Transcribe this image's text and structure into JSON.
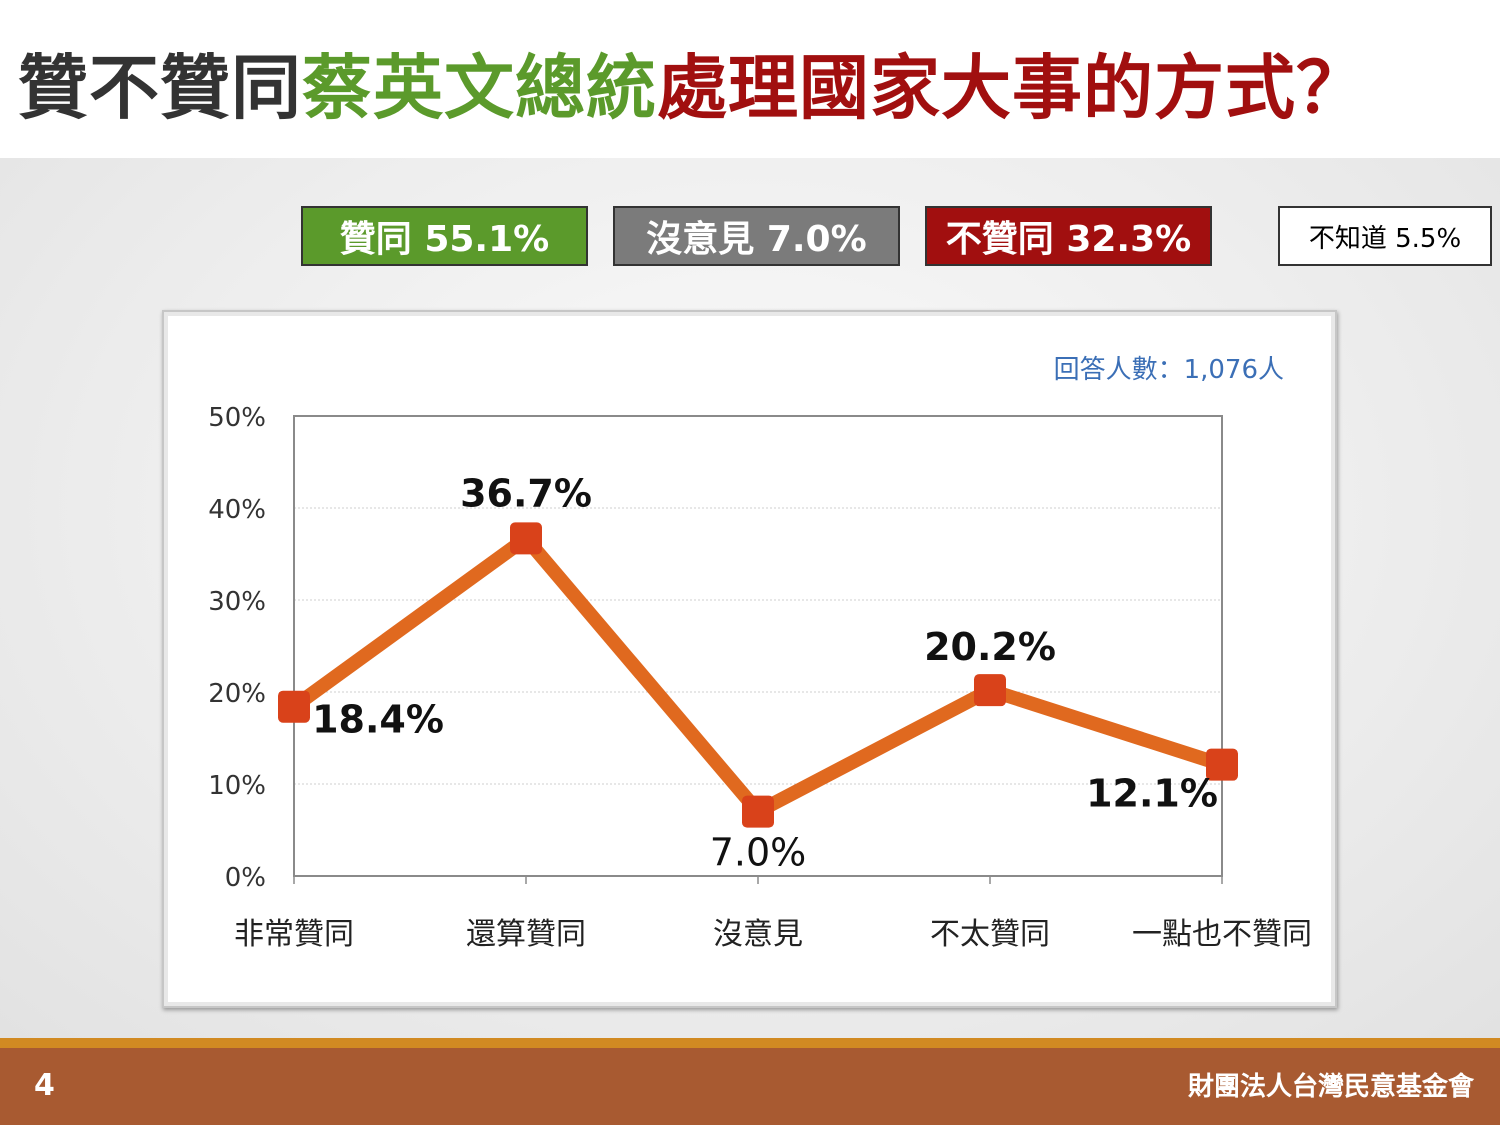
{
  "title": {
    "part1": "贊不贊同",
    "part2": "蔡英文總統",
    "part3": "處理國家大事的方式？",
    "colors": {
      "part1": "#333333",
      "part2": "#5b9a2b",
      "part3": "#a10f0f"
    }
  },
  "summary": {
    "approve": "贊同 55.1%",
    "neutral": "沒意見 7.0%",
    "disapprove": "不贊同 32.3%",
    "unknown": "不知道 5.5%"
  },
  "chart_data": {
    "type": "line",
    "categories": [
      "非常贊同",
      "還算贊同",
      "沒意見",
      "不太贊同",
      "一點也不贊同"
    ],
    "values": [
      18.4,
      36.7,
      7.0,
      20.2,
      12.1
    ],
    "data_labels": [
      "18.4%",
      "36.7%",
      "7.0%",
      "20.2%",
      "12.1%"
    ],
    "yticks": [
      "0%",
      "10%",
      "20%",
      "30%",
      "40%",
      "50%"
    ],
    "ylim": [
      0,
      50
    ],
    "grid": true,
    "annotation": "回答人數：1,076人",
    "line_color": "#e0691f",
    "marker_color": "#d9421a",
    "annotation_color": "#3b6fb6"
  },
  "footer": {
    "page_number": "4",
    "organization": "財團法人台灣民意基金會"
  }
}
